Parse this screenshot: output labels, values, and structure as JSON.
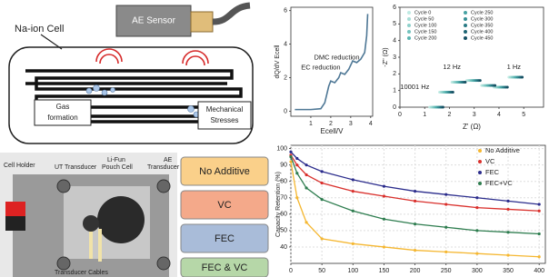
{
  "diagram": {
    "cell_label": "Na-ion Cell",
    "sensor": "AE Sensor",
    "gas": [
      "Gas",
      "formation"
    ],
    "stress": [
      "Mechanical",
      "Stresses"
    ]
  },
  "photo": {
    "labels": [
      "Cell Holder",
      "UT Transducer",
      "Li-Fun",
      "Pouch Cell",
      "AE",
      "Transducer",
      "Transducer Cables"
    ]
  },
  "additives": [
    "No Additive",
    "VC",
    "FEC",
    "FEC & VC"
  ],
  "chart_data": [
    {
      "type": "line",
      "x_label": "Ecell/V",
      "y_label": "dQ/dV Ecell",
      "x": [
        0.2,
        1.0,
        1.5,
        1.7,
        1.9,
        2.0,
        2.2,
        2.4,
        2.5,
        2.7,
        2.9,
        3.1,
        3.3,
        3.5,
        3.7,
        3.8,
        3.85
      ],
      "series": [
        {
          "name": null,
          "color": "#4f7896",
          "values": [
            0.1,
            0.1,
            0.15,
            0.5,
            1.5,
            1.8,
            1.7,
            2.0,
            2.3,
            2.2,
            2.5,
            3.0,
            2.9,
            3.1,
            3.5,
            4.5,
            5.8
          ]
        }
      ],
      "annotations": [
        "EC reduction",
        "DMC reduction"
      ],
      "xlim": [
        0,
        4.1
      ],
      "ylim": [
        -0.3,
        6.2
      ],
      "xticks": [
        1,
        2,
        3,
        4
      ],
      "yticks": [
        0,
        2,
        4,
        6
      ],
      "grid": false
    },
    {
      "type": "scatter",
      "x_label": "Z' (Ω)",
      "y_label": "-Z'' (Ω)",
      "series": [
        {
          "name": "Cycle 0",
          "color": "#bfeae3",
          "x": [
            1.2,
            1.6,
            2.1,
            2.7,
            3.3,
            3.8,
            4.4
          ],
          "values": [
            0,
            0.9,
            1.5,
            1.6,
            1.3,
            1.2,
            1.8
          ]
        },
        {
          "name": "Cycle 50",
          "color": "#a6ddd6",
          "x": [
            1.26,
            1.66,
            2.16,
            2.76,
            3.36,
            3.86,
            4.46
          ],
          "values": [
            0,
            0.9,
            1.5,
            1.6,
            1.3,
            1.2,
            1.8
          ]
        },
        {
          "name": "Cycle 100",
          "color": "#8dd0ca",
          "x": [
            1.32,
            1.72,
            2.22,
            2.82,
            3.42,
            3.92,
            4.52
          ],
          "values": [
            0,
            0.9,
            1.5,
            1.6,
            1.3,
            1.2,
            1.8
          ]
        },
        {
          "name": "Cycle 150",
          "color": "#74c3be",
          "x": [
            1.38,
            1.78,
            2.28,
            2.88,
            3.48,
            3.98,
            4.58
          ],
          "values": [
            0,
            0.9,
            1.5,
            1.6,
            1.3,
            1.2,
            1.8
          ]
        },
        {
          "name": "Cycle 200",
          "color": "#5bb5b1",
          "x": [
            1.44,
            1.84,
            2.34,
            2.94,
            3.54,
            4.04,
            4.64
          ],
          "values": [
            0,
            0.9,
            1.5,
            1.6,
            1.3,
            1.2,
            1.8
          ]
        },
        {
          "name": "Cycle 250",
          "color": "#47a2a3",
          "x": [
            1.5,
            1.9,
            2.4,
            3.0,
            3.6,
            4.1,
            4.7
          ],
          "values": [
            0,
            0.9,
            1.5,
            1.6,
            1.3,
            1.2,
            1.8
          ]
        },
        {
          "name": "Cycle 300",
          "color": "#368e94",
          "x": [
            1.56,
            1.96,
            2.46,
            3.06,
            3.66,
            4.16,
            4.76
          ],
          "values": [
            0,
            0.9,
            1.5,
            1.6,
            1.3,
            1.2,
            1.8
          ]
        },
        {
          "name": "Cycle 350",
          "color": "#287a84",
          "x": [
            1.62,
            2.02,
            2.52,
            3.12,
            3.72,
            4.22,
            4.82
          ],
          "values": [
            0,
            0.9,
            1.5,
            1.6,
            1.3,
            1.2,
            1.8
          ]
        },
        {
          "name": "Cycle 400",
          "color": "#1e6574",
          "x": [
            1.68,
            2.08,
            2.58,
            3.18,
            3.78,
            4.28,
            4.88
          ],
          "values": [
            0,
            0.9,
            1.5,
            1.6,
            1.3,
            1.2,
            1.8
          ]
        },
        {
          "name": "Cycle 450",
          "color": "#165063",
          "x": [
            1.74,
            2.14,
            2.64,
            3.24,
            3.84,
            4.34,
            4.94
          ],
          "values": [
            0,
            0.9,
            1.5,
            1.6,
            1.3,
            1.2,
            1.8
          ]
        }
      ],
      "annotations": [
        "10001 Hz",
        "12 Hz",
        "1 Hz"
      ],
      "xlim": [
        0,
        5.8
      ],
      "ylim": [
        0,
        6
      ],
      "xticks": [
        0,
        1,
        2,
        3,
        4,
        5
      ],
      "yticks": [
        0,
        1,
        2,
        3,
        4,
        5,
        6
      ],
      "grid": false
    },
    {
      "type": "line",
      "x_label": null,
      "y_label": "Capacity Retention (%)",
      "x": [
        0,
        10,
        25,
        50,
        100,
        150,
        200,
        250,
        300,
        350,
        400
      ],
      "series": [
        {
          "name": "No Additive",
          "color": "#f5b731",
          "values": [
            92,
            70,
            55,
            45,
            42,
            40,
            38,
            37,
            36,
            35,
            34
          ]
        },
        {
          "name": "VC",
          "color": "#d9302c",
          "values": [
            96,
            90,
            84,
            79,
            74,
            71,
            68,
            66,
            64,
            63,
            62
          ]
        },
        {
          "name": "FEC",
          "color": "#2b2c8c",
          "values": [
            98,
            94,
            90,
            86,
            81,
            77,
            74,
            72,
            70,
            68,
            66
          ]
        },
        {
          "name": "FEC+VC",
          "color": "#2e7d4f",
          "values": [
            95,
            85,
            76,
            69,
            62,
            57,
            54,
            52,
            50,
            49,
            48
          ]
        }
      ],
      "xlim": [
        0,
        410
      ],
      "ylim": [
        30,
        102
      ],
      "xticks": [
        0,
        50,
        100,
        150,
        200,
        250,
        300,
        350,
        400
      ],
      "yticks": [
        40,
        50,
        60,
        70,
        80,
        90,
        100
      ],
      "grid": true
    }
  ]
}
